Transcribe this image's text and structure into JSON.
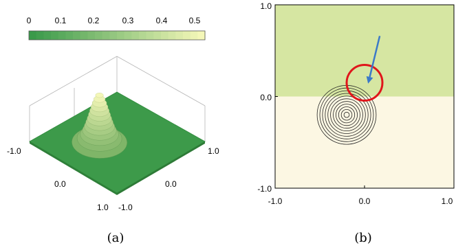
{
  "panel_a": {
    "caption": "(a)",
    "colorbar_ticks": [
      "0",
      "0.1",
      "0.2",
      "0.3",
      "0.4",
      "0.5"
    ],
    "axis_labels": {
      "left_x": "-1.0",
      "front_left_mid": "0.0",
      "front_left_corner": "1.0",
      "front_right_corner": "-1.0",
      "front_right_mid": "0.0",
      "right_x": "1.0"
    }
  },
  "panel_b": {
    "caption": "(b)",
    "y_ticks": [
      "1.0",
      "0.0",
      "-1.0"
    ],
    "x_ticks": [
      "-1.0",
      "0.0",
      "1.0"
    ]
  },
  "chart_data": [
    {
      "type": "heatmap",
      "title": "",
      "description": "3D surface with a single Gaussian bump near (-0.2,-0.2) on a flat green plane over [-1,1]x[-1,1]",
      "colorbar": {
        "range": [
          0,
          0.55
        ],
        "ticks": [
          0,
          0.1,
          0.2,
          0.3,
          0.4,
          0.5
        ],
        "low_color": "#3a9a4a",
        "high_color": "#f4f7b8"
      },
      "xlim": [
        -1,
        1
      ],
      "ylim": [
        -1,
        1
      ],
      "peak": {
        "x": -0.2,
        "y": -0.2,
        "value": 0.55
      }
    },
    {
      "type": "scatter",
      "title": "",
      "description": "Top view: two-region background (upper green, lower cream) with concentric contour rings of the bump, a red circle marking the interface and an arrow",
      "xlim": [
        -1,
        1
      ],
      "ylim": [
        -1,
        1
      ],
      "regions": [
        {
          "name": "upper",
          "y_range": [
            0.0,
            1.0
          ],
          "color": "#d6e6a2"
        },
        {
          "name": "lower",
          "y_range": [
            -1.0,
            0.0
          ],
          "color": "#fcf7e3"
        }
      ],
      "interface_y": 0.0,
      "contours": {
        "center": [
          -0.2,
          -0.2
        ],
        "radii": [
          0.33,
          0.3,
          0.27,
          0.24,
          0.21,
          0.18,
          0.15,
          0.12,
          0.09,
          0.06,
          0.03
        ]
      },
      "highlight_circle": {
        "center": [
          0.0,
          0.15
        ],
        "radius": 0.2,
        "color": "#e0161b"
      },
      "arrow": {
        "from": [
          0.17,
          0.66
        ],
        "to": [
          0.04,
          0.14
        ],
        "color": "#3b79c8"
      }
    }
  ]
}
